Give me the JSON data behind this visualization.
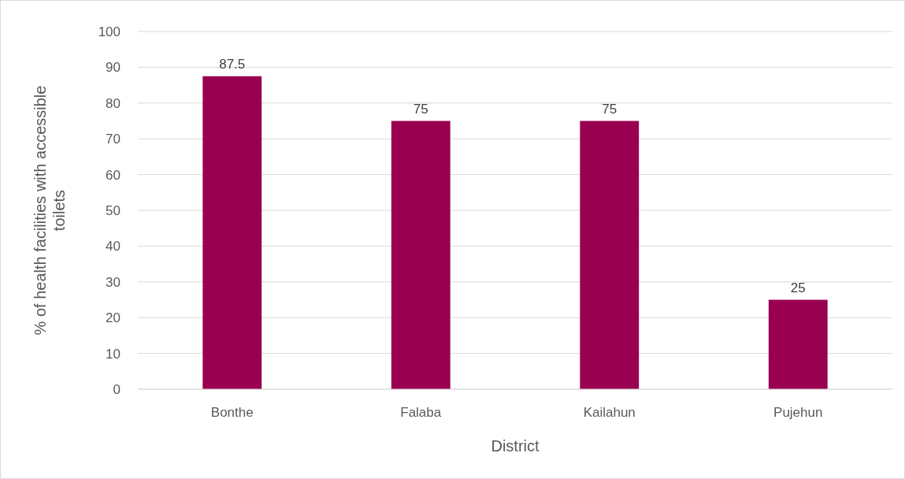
{
  "chart_data": {
    "type": "bar",
    "xlabel": "District",
    "ylabel": "% of health facilities with accessible toilets",
    "categories": [
      "Bonthe",
      "Falaba",
      "Kailahun",
      "Pujehun"
    ],
    "values": [
      87.5,
      75,
      75,
      25
    ],
    "color": "#990050",
    "ylim": [
      0,
      100
    ],
    "yticks": [
      0,
      10,
      20,
      30,
      40,
      50,
      60,
      70,
      80,
      90,
      100
    ],
    "grid": "y",
    "data_labels": true
  }
}
